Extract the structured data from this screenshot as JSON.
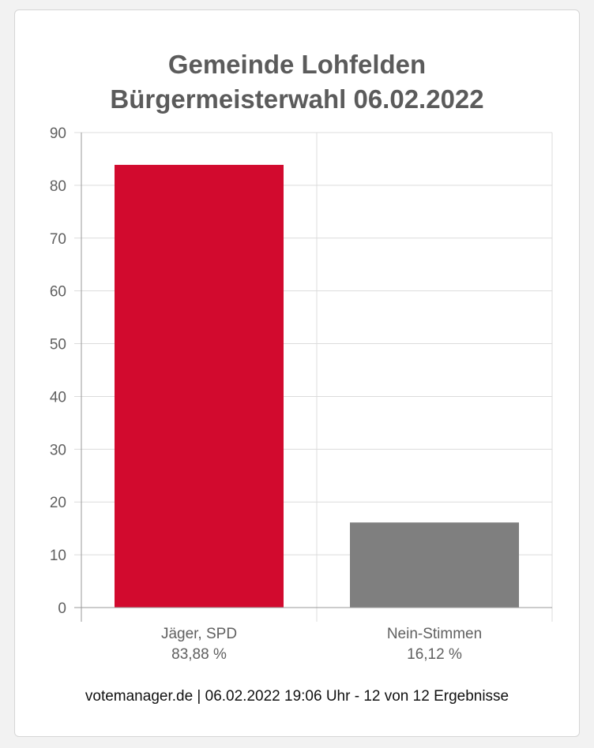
{
  "chart_data": {
    "type": "bar",
    "title": "Gemeinde Lohfelden",
    "subtitle": "Bürgermeisterwahl 06.02.2022",
    "categories": [
      "Jäger, SPD",
      "Nein-Stimmen"
    ],
    "values": [
      83.88,
      16.12
    ],
    "value_labels": [
      "83,88 %",
      "16,12 %"
    ],
    "colors": [
      "#d20a2e",
      "#7f7f7f"
    ],
    "ylim": [
      0,
      90
    ],
    "yticks": [
      "0",
      "10",
      "20",
      "30",
      "40",
      "50",
      "60",
      "70",
      "80",
      "90"
    ],
    "grid": true
  },
  "footer": {
    "source": "votemanager.de | 06.02.2022 19:06 Uhr - 12 von 12 Ergebnisse"
  }
}
